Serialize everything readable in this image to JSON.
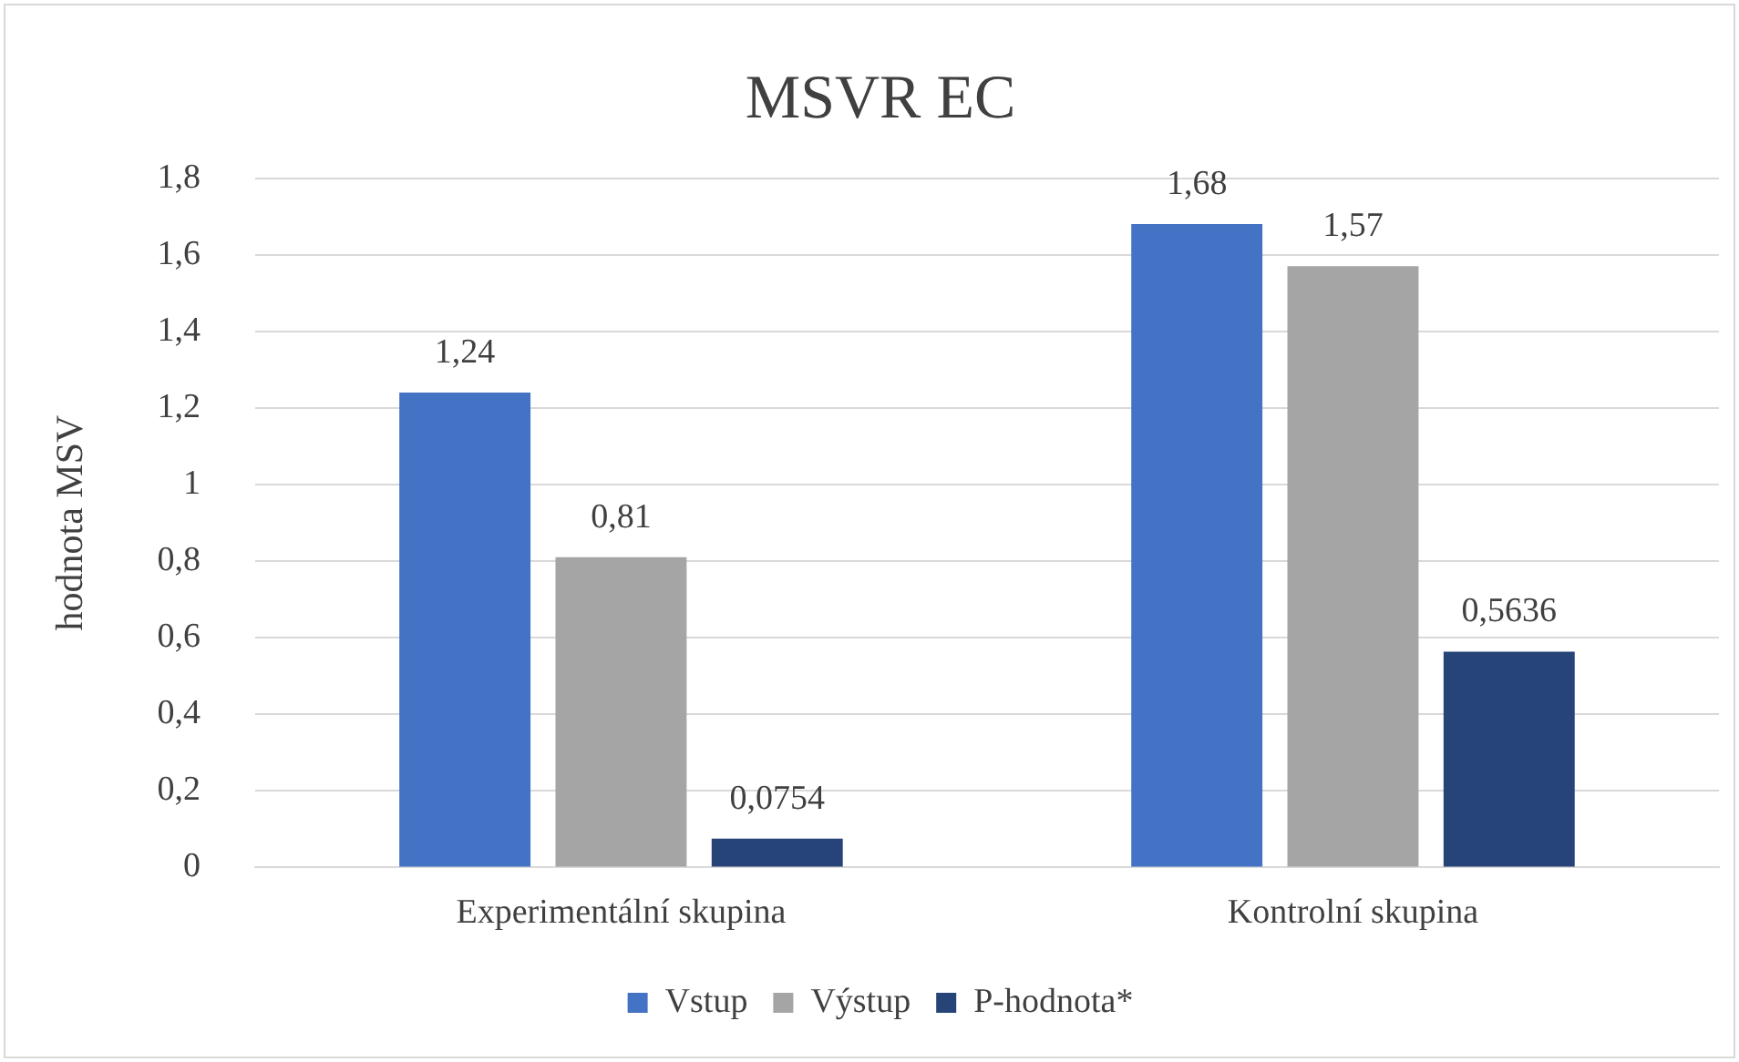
{
  "chart_data": {
    "type": "bar",
    "title": "MSVR EC",
    "ylabel": "hodnota MSV",
    "categories": [
      "Experimentální skupina",
      "Kontrolní skupina"
    ],
    "series": [
      {
        "name": "Vstup",
        "color": "#4472c4",
        "values": [
          1.24,
          1.68
        ],
        "value_labels": [
          "1,24",
          "1,68"
        ]
      },
      {
        "name": "Výstup",
        "color": "#a5a5a5",
        "values": [
          0.81,
          1.57
        ],
        "value_labels": [
          "0,81",
          "1,57"
        ]
      },
      {
        "name": "P-hodnota*",
        "color": "#264478",
        "values": [
          0.0754,
          0.5636
        ],
        "value_labels": [
          "0,0754",
          "0,5636"
        ]
      }
    ],
    "ylim": [
      0,
      1.8
    ],
    "yticks": [
      0,
      {
        "value": 0.2,
        "label": "0,2"
      },
      {
        "value": 0.4,
        "label": "0,4"
      },
      {
        "value": 0.6,
        "label": "0,6"
      },
      {
        "value": 0.8,
        "label": "0,8"
      },
      1,
      {
        "value": 1.2,
        "label": "1,2"
      },
      {
        "value": 1.4,
        "label": "1,4"
      },
      {
        "value": 1.6,
        "label": "1,6"
      },
      {
        "value": 1.8,
        "label": "1,8"
      }
    ],
    "grid": "y",
    "legend": "bottom"
  }
}
